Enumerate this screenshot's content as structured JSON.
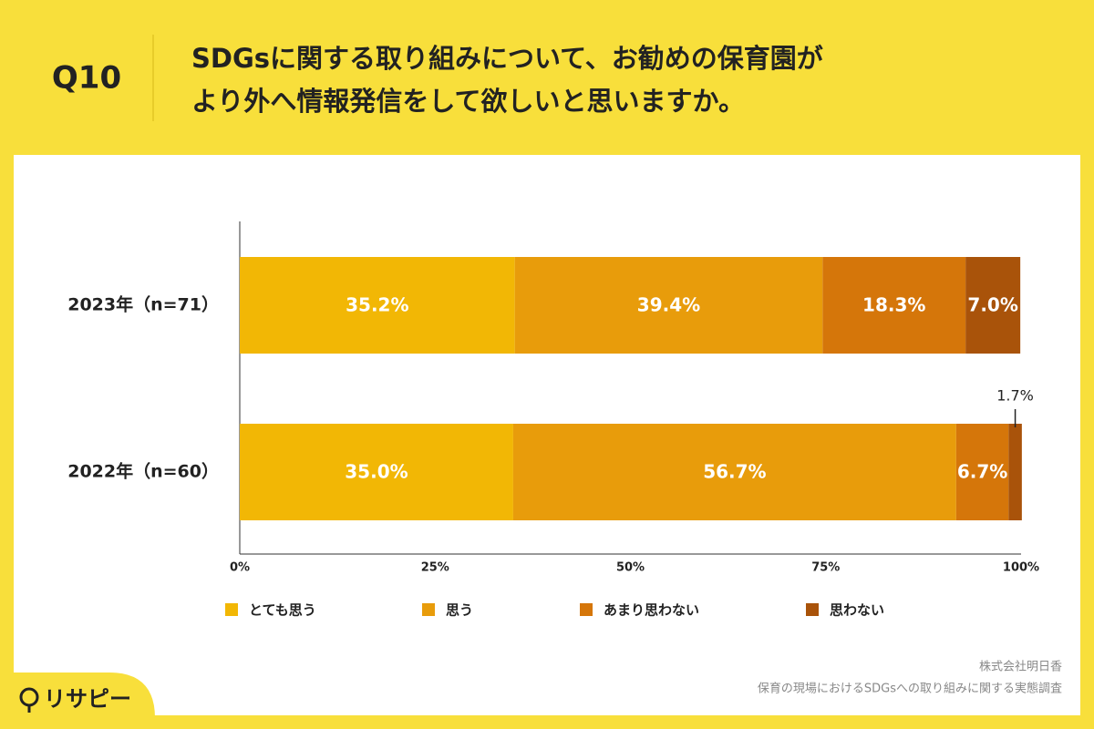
{
  "chart_data": {
    "type": "stacked-bar-horizontal",
    "question": "Q10",
    "title": [
      "SDGsに関する取り組みについて、お勧めの保育園が",
      "より外へ情報発信をして欲しいと思いますか。"
    ],
    "categories": [
      "2023年（n=71）",
      "2022年（n=60）"
    ],
    "series": [
      {
        "name": "とても思う",
        "color": "#F2B705",
        "values": [
          35.2,
          35.0
        ],
        "value_labels": [
          "35.2%",
          "35.0%"
        ]
      },
      {
        "name": "思う",
        "color": "#E89C0B",
        "values": [
          39.4,
          56.7
        ],
        "value_labels": [
          "39.4%",
          "56.7%"
        ]
      },
      {
        "name": "あまり思わない",
        "color": "#D5760A",
        "values": [
          18.3,
          6.7
        ],
        "value_labels": [
          "18.3%",
          "6.7%"
        ]
      },
      {
        "name": "思わない",
        "color": "#A9530A",
        "values": [
          7.0,
          1.7
        ],
        "value_labels": [
          "7.0%",
          "1.7%"
        ]
      }
    ],
    "xlim": [
      0,
      100
    ],
    "xticks": [
      {
        "value": 0,
        "label": "0%"
      },
      {
        "value": 25,
        "label": "25%"
      },
      {
        "value": 50,
        "label": "50%"
      },
      {
        "value": 75,
        "label": "75%"
      },
      {
        "value": 100,
        "label": "100%"
      }
    ],
    "grid": false,
    "source": [
      "株式会社明日香",
      "保育の現場におけるSDGsへの取り組みに関する実態調査"
    ]
  },
  "logo": "リサピー"
}
